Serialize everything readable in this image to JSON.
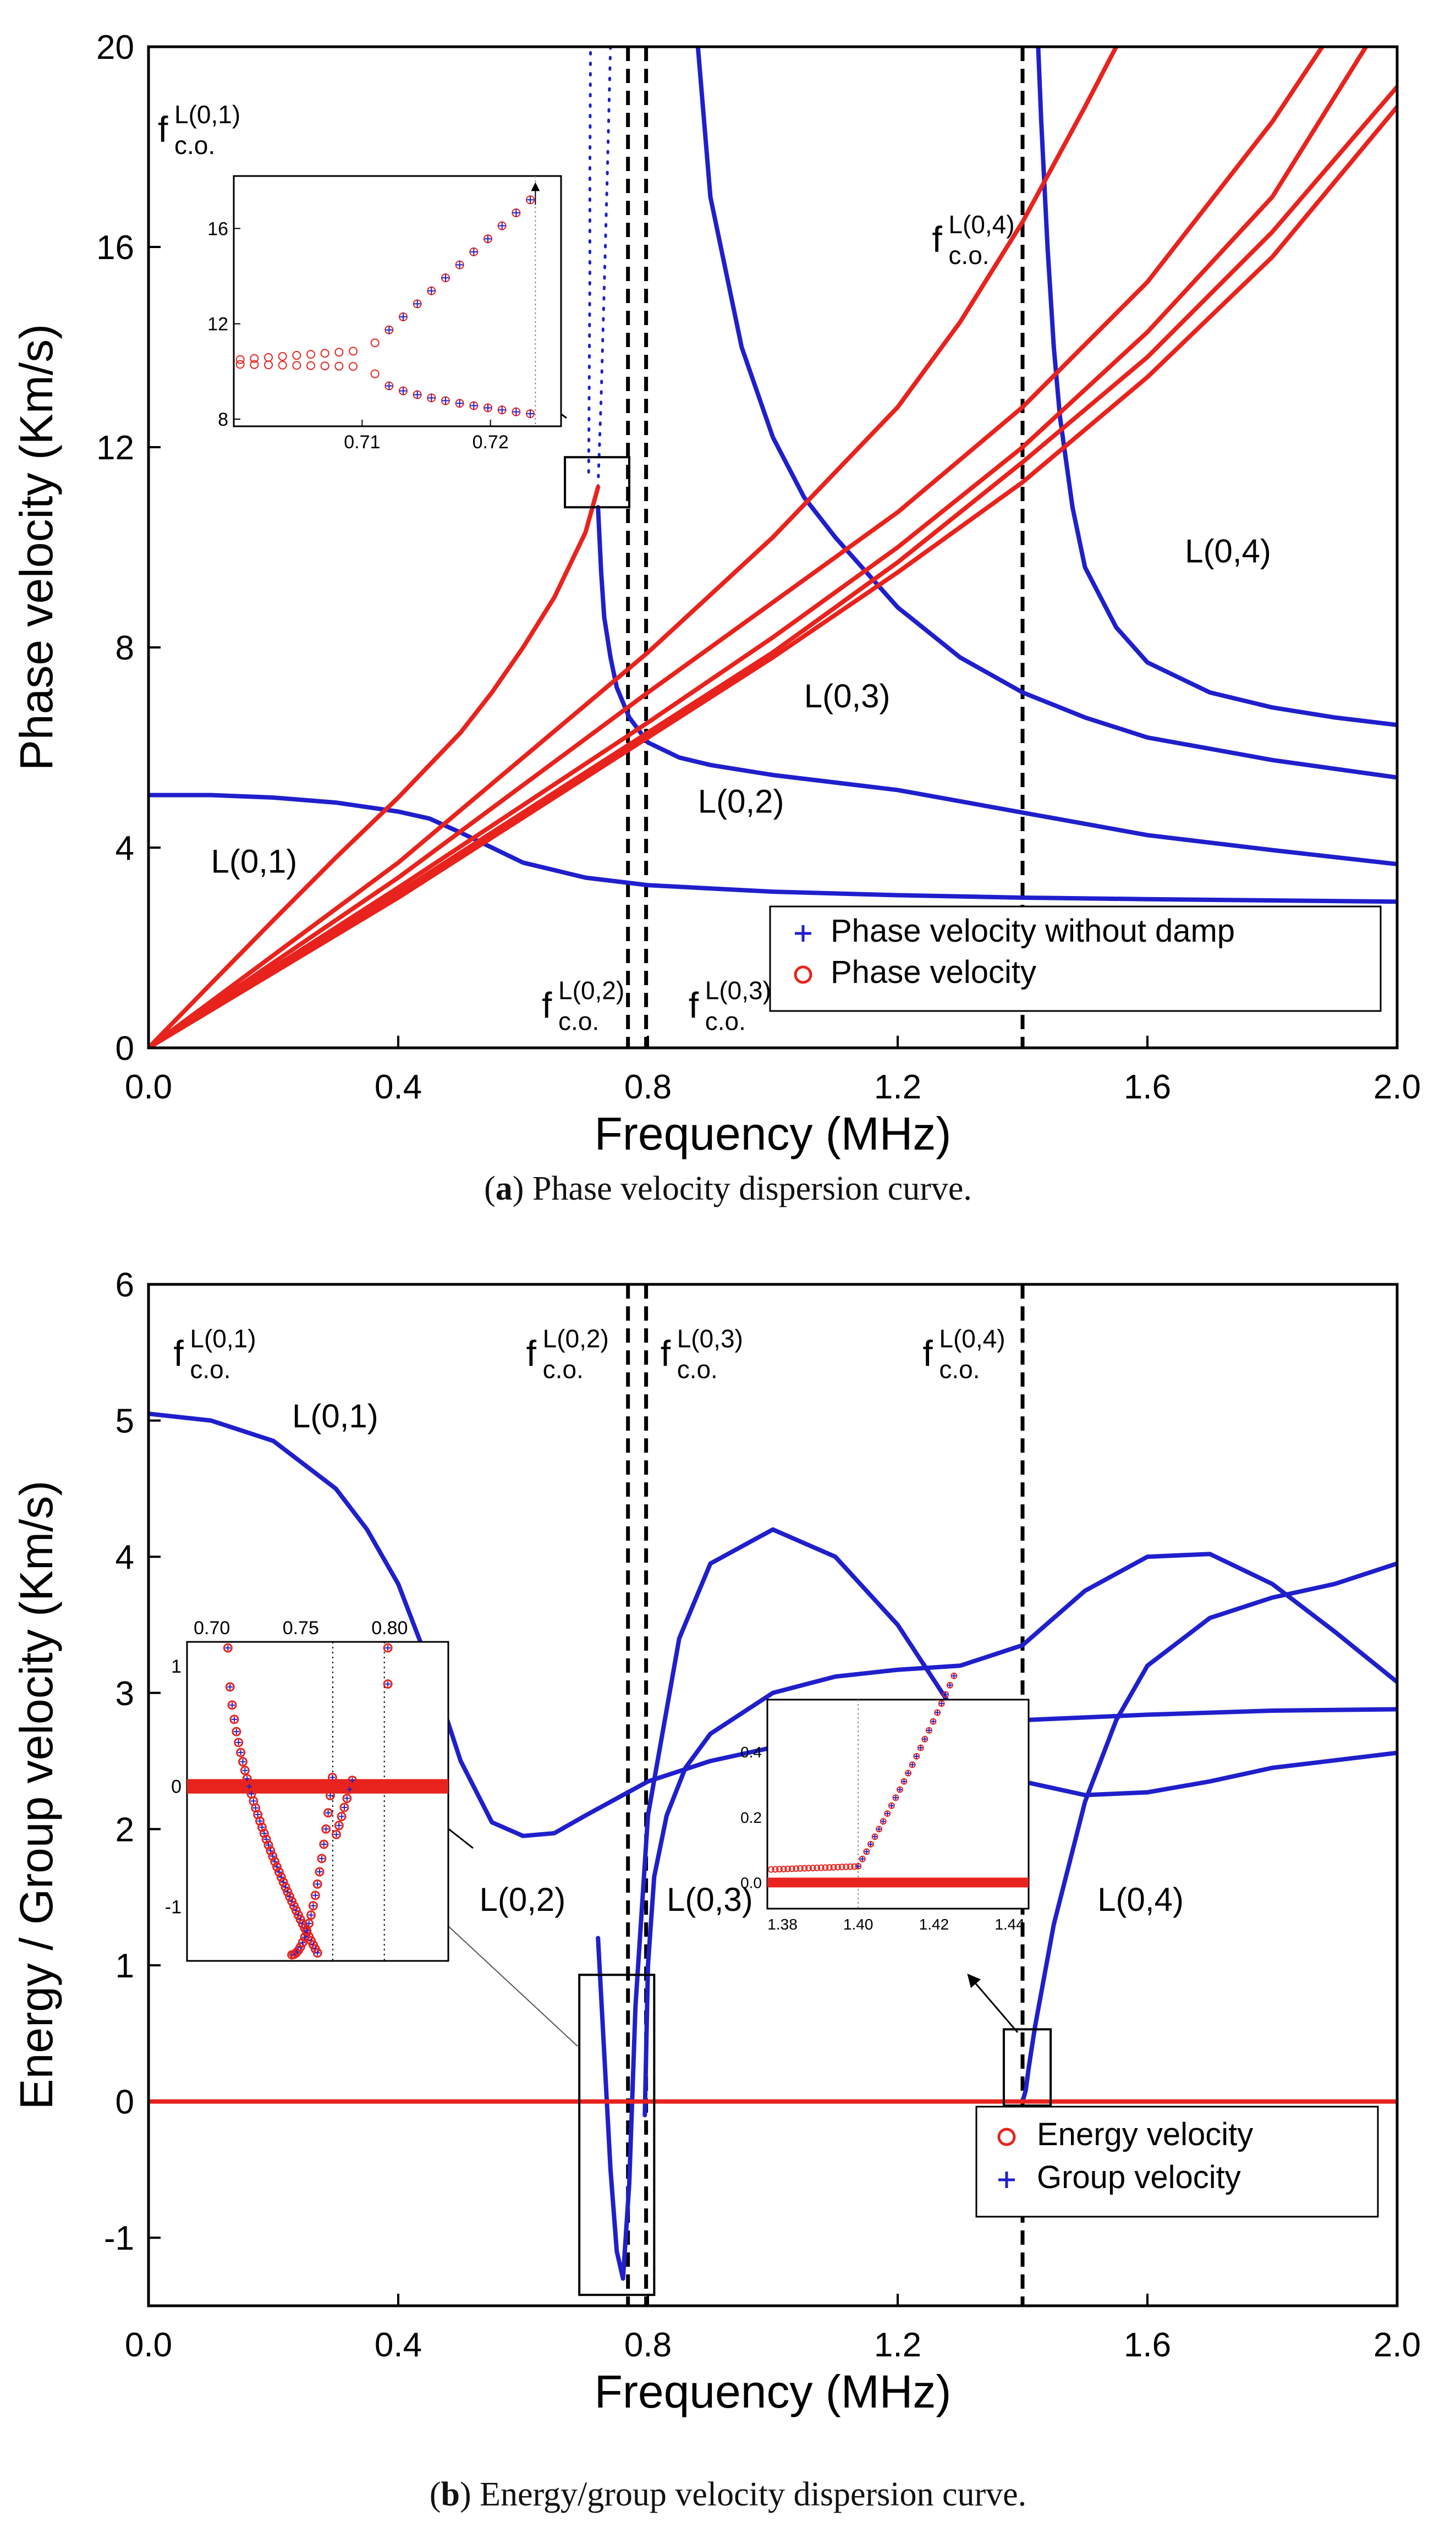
{
  "colors": {
    "blue": "#1f1fcc",
    "red": "#e8231d",
    "axis": "#000000",
    "dashed": "#000000",
    "faint": "#888888"
  },
  "panel_a": {
    "caption": {
      "tag": "a",
      "text": "Phase velocity dispersion curve."
    },
    "labels": {
      "L01": "L(0,1)",
      "L02": "L(0,2)",
      "L03": "L(0,3)",
      "L04": "L(0,4)"
    },
    "cutoff_labels": [
      {
        "base": "f",
        "sup": "L(0,1)",
        "sub": "c.o."
      },
      {
        "base": "f",
        "sup": "L(0,2)",
        "sub": "c.o."
      },
      {
        "base": "f",
        "sup": "L(0,3)",
        "sub": "c.o."
      },
      {
        "base": "f",
        "sup": "L(0,4)",
        "sub": "c.o."
      }
    ],
    "legend": [
      {
        "marker": "+",
        "label": "Phase velocity without damp"
      },
      {
        "marker": "o",
        "label": "Phase velocity"
      }
    ],
    "inset": {
      "xticks": [
        "0.71",
        "0.72"
      ],
      "yticks": [
        "8",
        "12",
        "16"
      ]
    }
  },
  "panel_b": {
    "caption": {
      "tag": "b",
      "text": "Energy/group velocity dispersion curve."
    },
    "labels": {
      "L01": "L(0,1)",
      "L02": "L(0,2)",
      "L03": "L(0,3)",
      "L04": "L(0,4)"
    },
    "cutoff_labels": [
      {
        "base": "f",
        "sup": "L(0,1)",
        "sub": "c.o."
      },
      {
        "base": "f",
        "sup": "L(0,2)",
        "sub": "c.o."
      },
      {
        "base": "f",
        "sup": "L(0,3)",
        "sub": "c.o."
      },
      {
        "base": "f",
        "sup": "L(0,4)",
        "sub": "c.o."
      }
    ],
    "legend": [
      {
        "marker": "o",
        "label": "Energy velocity"
      },
      {
        "marker": "+",
        "label": "Group velocity"
      }
    ],
    "inset1": {
      "xticks": [
        "0.70",
        "0.75",
        "0.80"
      ],
      "yticks": [
        "1",
        "0",
        "-1"
      ]
    },
    "inset2": {
      "xticks": [
        "1.38",
        "1.40",
        "1.42",
        "1.44"
      ],
      "yticks": [
        "0.4",
        "0.2",
        "0.0"
      ]
    }
  },
  "chart_data": [
    {
      "type": "line",
      "title": "Phase velocity dispersion curve",
      "xlabel": "Frequency (MHz)",
      "ylabel": "Phase velocity (Km/s)",
      "xlim": [
        0,
        2
      ],
      "ylim": [
        0,
        20
      ],
      "xticks": [
        "0.0",
        "0.4",
        "0.8",
        "1.2",
        "1.6",
        "2.0"
      ],
      "yticks": [
        "0",
        "4",
        "8",
        "12",
        "16",
        "20"
      ],
      "cutoffs_mhz": {
        "L02": 0.768,
        "L03": 0.797,
        "L04": 1.4
      },
      "series": [
        {
          "name": "L(0,1) phase velocity (blue)",
          "color": "blue",
          "x": [
            0,
            0.1,
            0.2,
            0.3,
            0.4,
            0.45,
            0.5,
            0.55,
            0.6,
            0.7,
            0.8,
            1.0,
            1.2,
            1.4,
            1.6,
            2.0
          ],
          "y": [
            5.05,
            5.05,
            5.0,
            4.9,
            4.72,
            4.58,
            4.3,
            4.0,
            3.7,
            3.4,
            3.25,
            3.12,
            3.05,
            3.0,
            2.97,
            2.92
          ]
        },
        {
          "name": "L(0,2) phase velocity (blue)",
          "color": "blue",
          "x": [
            0.72,
            0.725,
            0.73,
            0.74,
            0.75,
            0.77,
            0.8,
            0.85,
            0.9,
            1.0,
            1.2,
            1.4,
            1.6,
            1.8,
            2.0
          ],
          "y": [
            10.8,
            9.5,
            8.6,
            7.8,
            7.2,
            6.6,
            6.1,
            5.8,
            5.65,
            5.45,
            5.15,
            4.7,
            4.25,
            3.95,
            3.67
          ]
        },
        {
          "name": "L(0,2) steep branch (dotted)",
          "color": "blue",
          "x": [
            0.72,
            0.725,
            0.73,
            0.735,
            0.74
          ],
          "y": [
            11.2,
            13.0,
            15.2,
            17.5,
            20
          ]
        },
        {
          "name": "L(0,1) branch near cutoff (dotted)",
          "color": "blue",
          "x": [
            0.705,
            0.706,
            0.707,
            0.707,
            0.708
          ],
          "y": [
            11.5,
            13.5,
            15.5,
            17.5,
            20
          ]
        },
        {
          "name": "L(0,3) phase velocity (blue)",
          "color": "blue",
          "x": [
            0.88,
            0.9,
            0.95,
            1.0,
            1.05,
            1.1,
            1.2,
            1.3,
            1.4,
            1.5,
            1.6,
            1.8,
            2.0
          ],
          "y": [
            20,
            17.0,
            14.0,
            12.2,
            11.0,
            10.2,
            8.8,
            7.8,
            7.1,
            6.6,
            6.2,
            5.75,
            5.4
          ]
        },
        {
          "name": "L(0,4) phase velocity (blue)",
          "color": "blue",
          "x": [
            1.425,
            1.43,
            1.44,
            1.45,
            1.46,
            1.48,
            1.5,
            1.55,
            1.6,
            1.7,
            1.8,
            1.9,
            2.0
          ],
          "y": [
            20,
            18.5,
            16.0,
            14.0,
            12.6,
            10.8,
            9.6,
            8.4,
            7.7,
            7.1,
            6.8,
            6.6,
            6.45
          ]
        },
        {
          "name": "Damped phase velocity 1 (red)",
          "color": "red",
          "x": [
            0,
            0.1,
            0.2,
            0.3,
            0.4,
            0.5,
            0.55,
            0.6,
            0.65,
            0.7,
            0.72
          ],
          "y": [
            0,
            1.28,
            2.55,
            3.8,
            5.0,
            6.3,
            7.1,
            8.0,
            9.0,
            10.3,
            11.2
          ]
        },
        {
          "name": "Damped phase velocity 2 (red)",
          "color": "red",
          "x": [
            0,
            0.4,
            0.8,
            1.0,
            1.2,
            1.4,
            1.6,
            1.8,
            1.88
          ],
          "y": [
            0,
            3.4,
            7.1,
            8.9,
            10.7,
            12.8,
            15.3,
            18.5,
            20
          ]
        },
        {
          "name": "Damped phase velocity 3 (red)",
          "color": "red",
          "x": [
            0,
            0.4,
            0.8,
            1.0,
            1.2,
            1.4,
            1.6,
            1.8,
            1.95
          ],
          "y": [
            0,
            3.2,
            6.5,
            8.2,
            10.0,
            12.0,
            14.3,
            17.0,
            20
          ]
        },
        {
          "name": "Damped phase velocity 4 (red)",
          "color": "red",
          "x": [
            0,
            0.4,
            0.8,
            1.0,
            1.2,
            1.4,
            1.6,
            1.8,
            2.0
          ],
          "y": [
            0,
            3.1,
            6.3,
            7.9,
            9.7,
            11.7,
            13.8,
            16.3,
            19.2
          ]
        },
        {
          "name": "Damped phase velocity 5 (red)",
          "color": "red",
          "x": [
            0,
            0.4,
            0.8,
            1.0,
            1.2,
            1.4,
            1.6,
            1.8,
            2.0
          ],
          "y": [
            0,
            3.0,
            6.2,
            7.8,
            9.5,
            11.3,
            13.4,
            15.8,
            18.8
          ]
        },
        {
          "name": "Damped phase velocity 6 (red)",
          "color": "red",
          "x": [
            0,
            0.4,
            0.8,
            1.0,
            1.2,
            1.3,
            1.4,
            1.5,
            1.55
          ],
          "y": [
            0,
            3.7,
            7.9,
            10.2,
            12.8,
            14.5,
            16.5,
            18.8,
            20
          ]
        }
      ]
    },
    {
      "type": "line",
      "title": "Energy/group velocity dispersion curve",
      "xlabel": "Frequency (MHz)",
      "ylabel": "Energy / Group velocity (Km/s)",
      "xlim": [
        0,
        2
      ],
      "ylim": [
        -1.5,
        6
      ],
      "xticks": [
        "0.0",
        "0.4",
        "0.8",
        "1.2",
        "1.6",
        "2.0"
      ],
      "yticks": [
        "-1",
        "0",
        "1",
        "2",
        "3",
        "4",
        "5",
        "6"
      ],
      "cutoffs_mhz": {
        "L02": 0.768,
        "L03": 0.797,
        "L04": 1.4
      },
      "series": [
        {
          "name": "L(0,1) group velocity (blue)",
          "color": "blue",
          "x": [
            0,
            0.1,
            0.2,
            0.3,
            0.35,
            0.4,
            0.45,
            0.5,
            0.55,
            0.6,
            0.65,
            0.7,
            0.8,
            0.9,
            1.0,
            1.2,
            1.4,
            1.6,
            1.8,
            2.0
          ],
          "y": [
            5.05,
            5.0,
            4.85,
            4.5,
            4.2,
            3.8,
            3.2,
            2.5,
            2.05,
            1.95,
            1.97,
            2.1,
            2.35,
            2.5,
            2.6,
            2.72,
            2.8,
            2.84,
            2.87,
            2.88
          ]
        },
        {
          "name": "L(0,2) group velocity (blue)",
          "color": "blue",
          "x": [
            0.72,
            0.74,
            0.75,
            0.76,
            0.77,
            0.78,
            0.8,
            0.85,
            0.9,
            1.0,
            1.1,
            1.2,
            1.3,
            1.4,
            1.5,
            1.6,
            1.7,
            1.8,
            2.0
          ],
          "y": [
            1.2,
            -0.5,
            -1.1,
            -1.3,
            -0.6,
            0.7,
            2.1,
            3.4,
            3.95,
            4.2,
            4.0,
            3.5,
            2.8,
            2.35,
            2.25,
            2.27,
            2.35,
            2.45,
            2.56
          ]
        },
        {
          "name": "L(0,3) group velocity (blue)",
          "color": "blue",
          "x": [
            0.795,
            0.8,
            0.81,
            0.83,
            0.86,
            0.9,
            1.0,
            1.1,
            1.2,
            1.3,
            1.4,
            1.5,
            1.6,
            1.7,
            1.8,
            1.9,
            2.0
          ],
          "y": [
            -0.1,
            1.0,
            1.65,
            2.1,
            2.45,
            2.7,
            3.0,
            3.12,
            3.17,
            3.2,
            3.35,
            3.75,
            4.0,
            4.02,
            3.8,
            3.45,
            3.08
          ]
        },
        {
          "name": "L(0,4) group velocity (blue)",
          "color": "blue",
          "x": [
            1.4,
            1.405,
            1.41,
            1.42,
            1.45,
            1.5,
            1.55,
            1.6,
            1.7,
            1.8,
            1.9,
            2.0
          ],
          "y": [
            0.0,
            0.08,
            0.25,
            0.55,
            1.3,
            2.2,
            2.8,
            3.2,
            3.55,
            3.7,
            3.8,
            3.95
          ]
        },
        {
          "name": "Energy velocity (red)",
          "color": "red",
          "x": [
            0,
            2.0
          ],
          "y": [
            0.0,
            0.0
          ]
        }
      ]
    }
  ]
}
